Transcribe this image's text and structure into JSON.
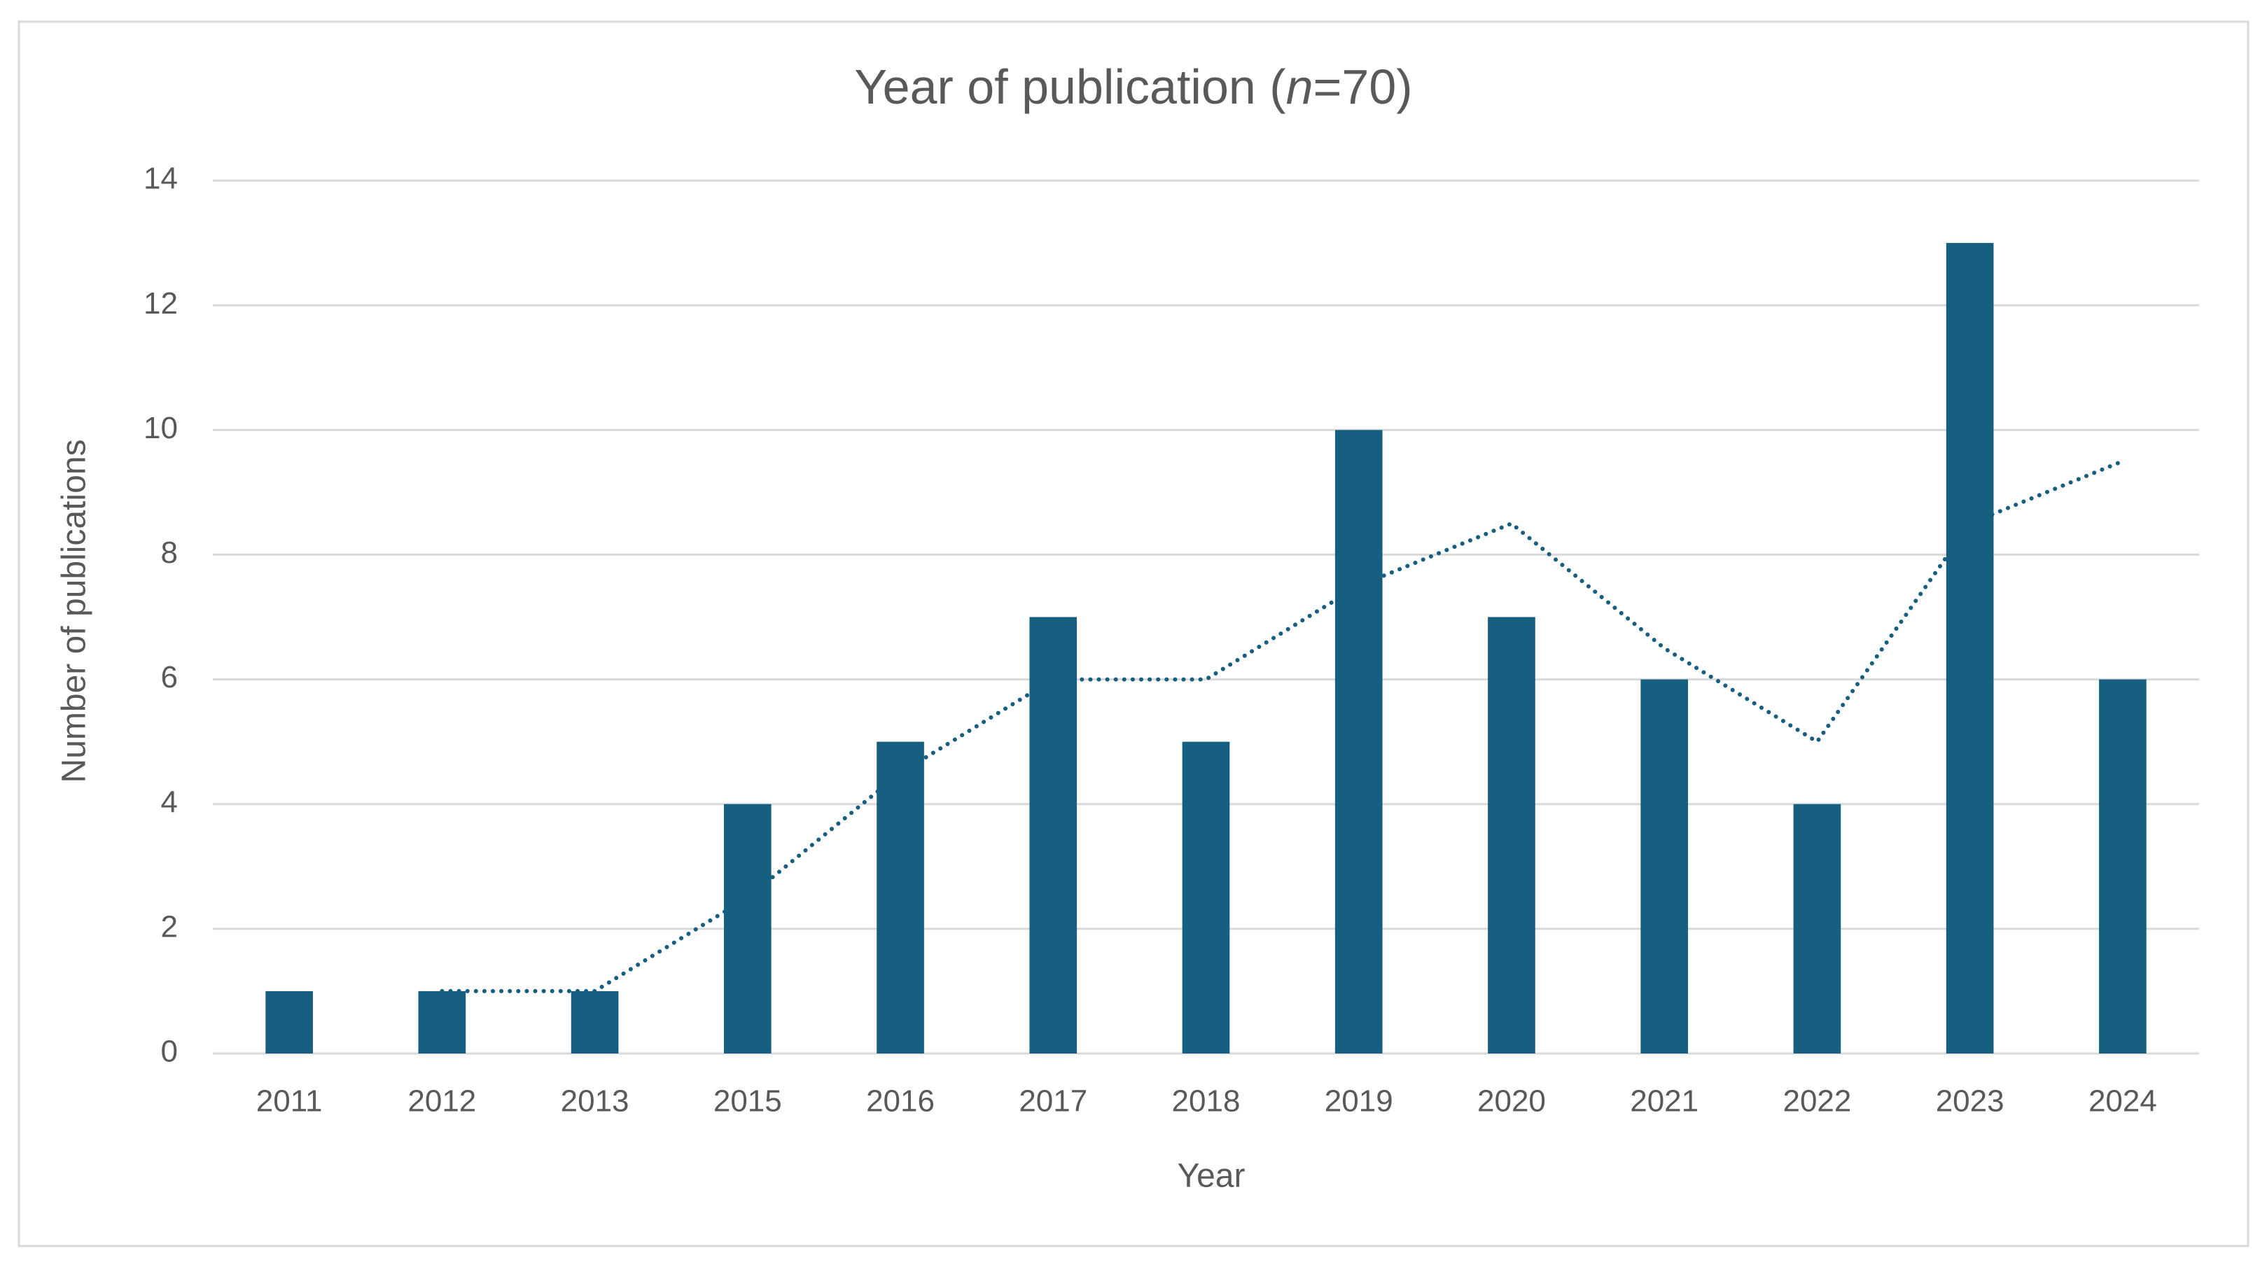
{
  "chart_data": {
    "type": "bar",
    "title_parts": [
      "Year of publication (",
      "n",
      "=70)"
    ],
    "x_label": "Year",
    "y_label": "Number of  publications",
    "categories": [
      "2011",
      "2012",
      "2013",
      "2015",
      "2016",
      "2017",
      "2018",
      "2019",
      "2020",
      "2021",
      "2022",
      "2023",
      "2024"
    ],
    "values": [
      1,
      1,
      1,
      4,
      5,
      7,
      5,
      10,
      7,
      6,
      4,
      13,
      6
    ],
    "color": "#175f80",
    "trendline": {
      "color": "#175f80",
      "values": [
        null,
        1,
        1,
        2.5,
        4.5,
        6,
        6,
        7.5,
        8.5,
        6.5,
        5,
        8.5,
        9.5
      ]
    },
    "ylim": [
      0,
      14
    ],
    "yticks": [
      0,
      2,
      4,
      6,
      8,
      10,
      12,
      14
    ],
    "grid": true
  }
}
